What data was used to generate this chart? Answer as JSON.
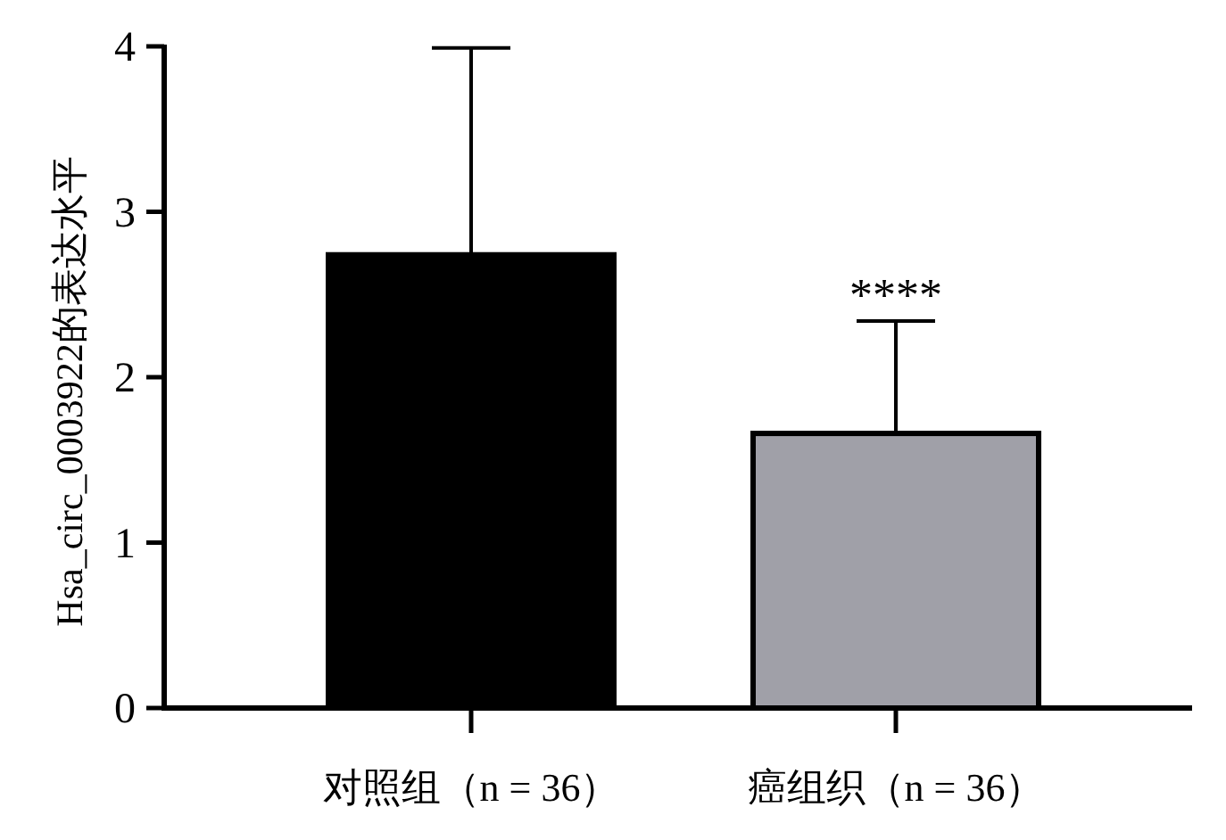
{
  "chart_data": {
    "type": "bar",
    "ylabel": "Hsa_circ_0003922的表达水平",
    "categories": [
      "对照组（n = 36）",
      "癌组织（n = 36）"
    ],
    "values": [
      2.74,
      1.66
    ],
    "colors": [
      "#000000",
      "#a0a0a8"
    ],
    "errors": [
      [
        2.74,
        3.99
      ],
      [
        1.66,
        2.34
      ]
    ],
    "ylim": [
      0,
      4
    ],
    "yticks": [
      0,
      1,
      2,
      3,
      4
    ],
    "annotations": [
      {
        "text": "****",
        "x": "癌组织（n = 36）",
        "y": 2.34
      }
    ]
  }
}
